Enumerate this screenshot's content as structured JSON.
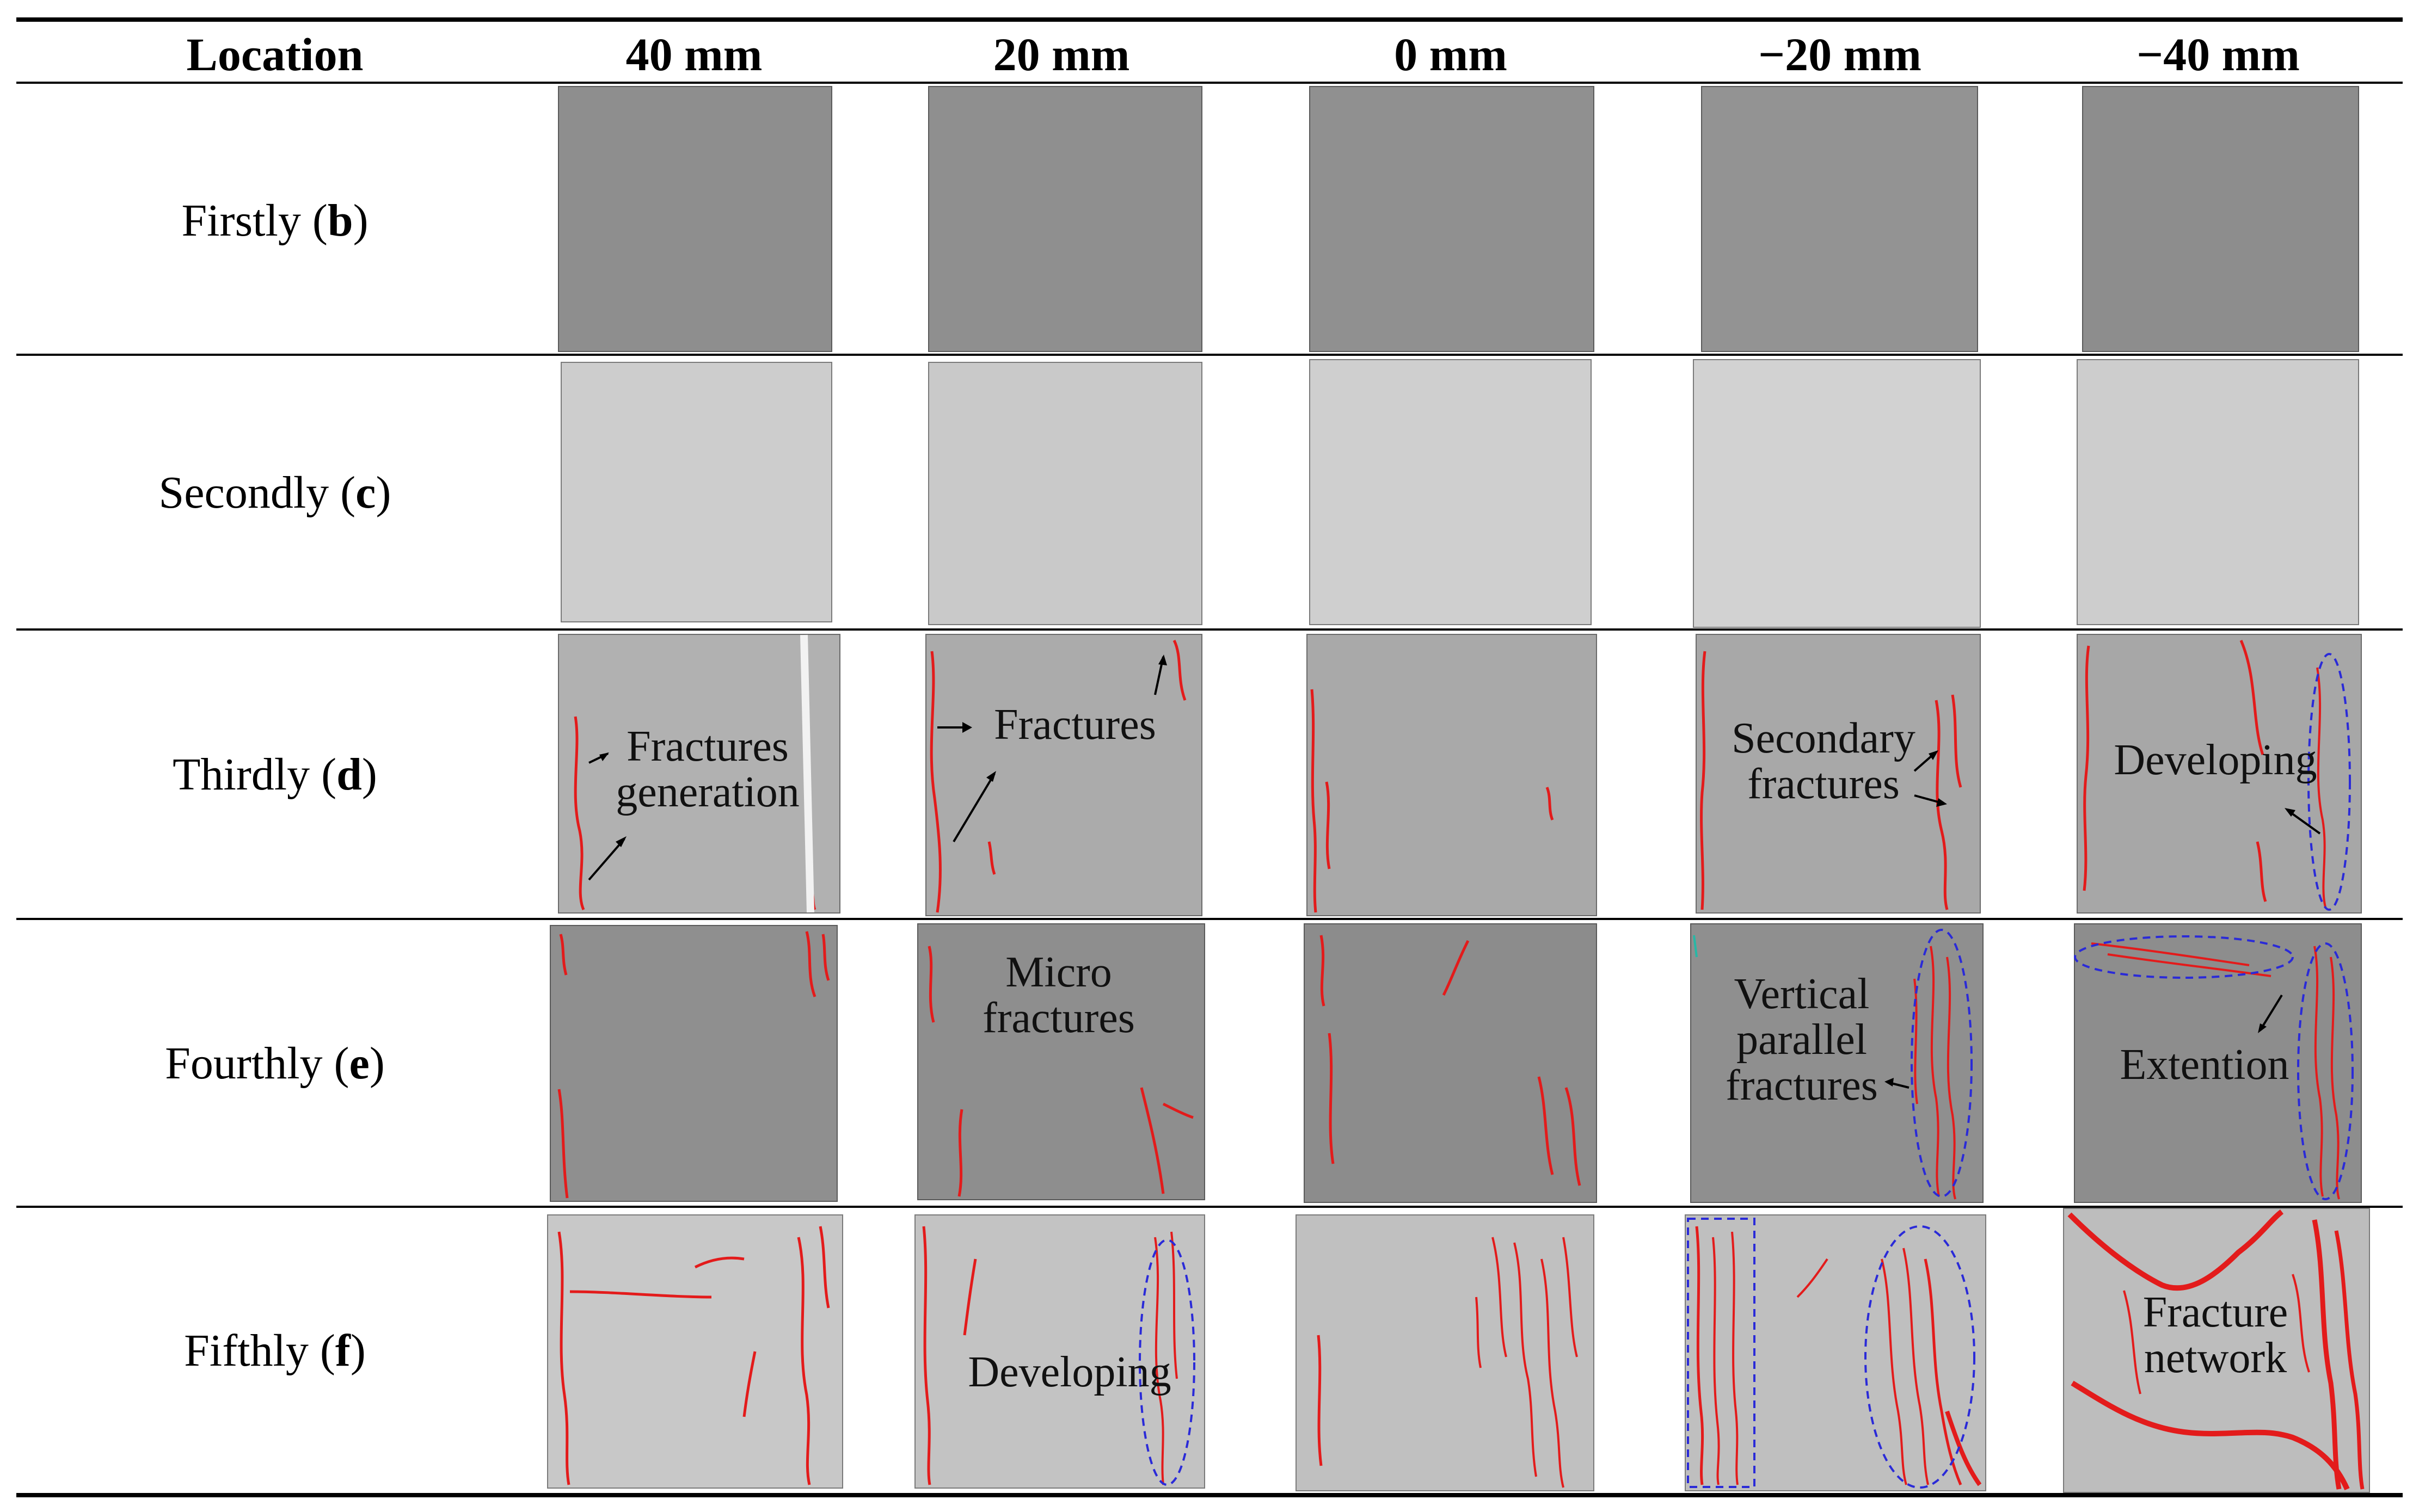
{
  "header": {
    "location": "Location",
    "columns": [
      "40 mm",
      "20 mm",
      "0 mm",
      "−20 mm",
      "−40 mm"
    ]
  },
  "rows": [
    {
      "label": "Firstly",
      "letter": "b"
    },
    {
      "label": "Secondly",
      "letter": "c"
    },
    {
      "label": "Thirdly",
      "letter": "d"
    },
    {
      "label": "Fourthly",
      "letter": "e"
    },
    {
      "label": "Fifthly",
      "letter": "f"
    }
  ],
  "annotations": {
    "d_40": [
      "Fractures",
      "generation"
    ],
    "d_20": [
      "Fractures"
    ],
    "d_m20": [
      "Secondary",
      "fractures"
    ],
    "d_m40": [
      "Developing"
    ],
    "e_20": [
      "Micro",
      "fractures"
    ],
    "e_m20": [
      "Vertical",
      "parallel",
      "fractures"
    ],
    "e_m40": [
      "Extention"
    ],
    "f_20": [
      "Developing"
    ],
    "f_m40": [
      "Fracture",
      "network"
    ]
  },
  "colors": {
    "fracture": "#e31b1b",
    "highlight": "#2a2ad8",
    "specimen_dark": "#8e8e8e",
    "specimen_light": "#cfcfcf"
  }
}
